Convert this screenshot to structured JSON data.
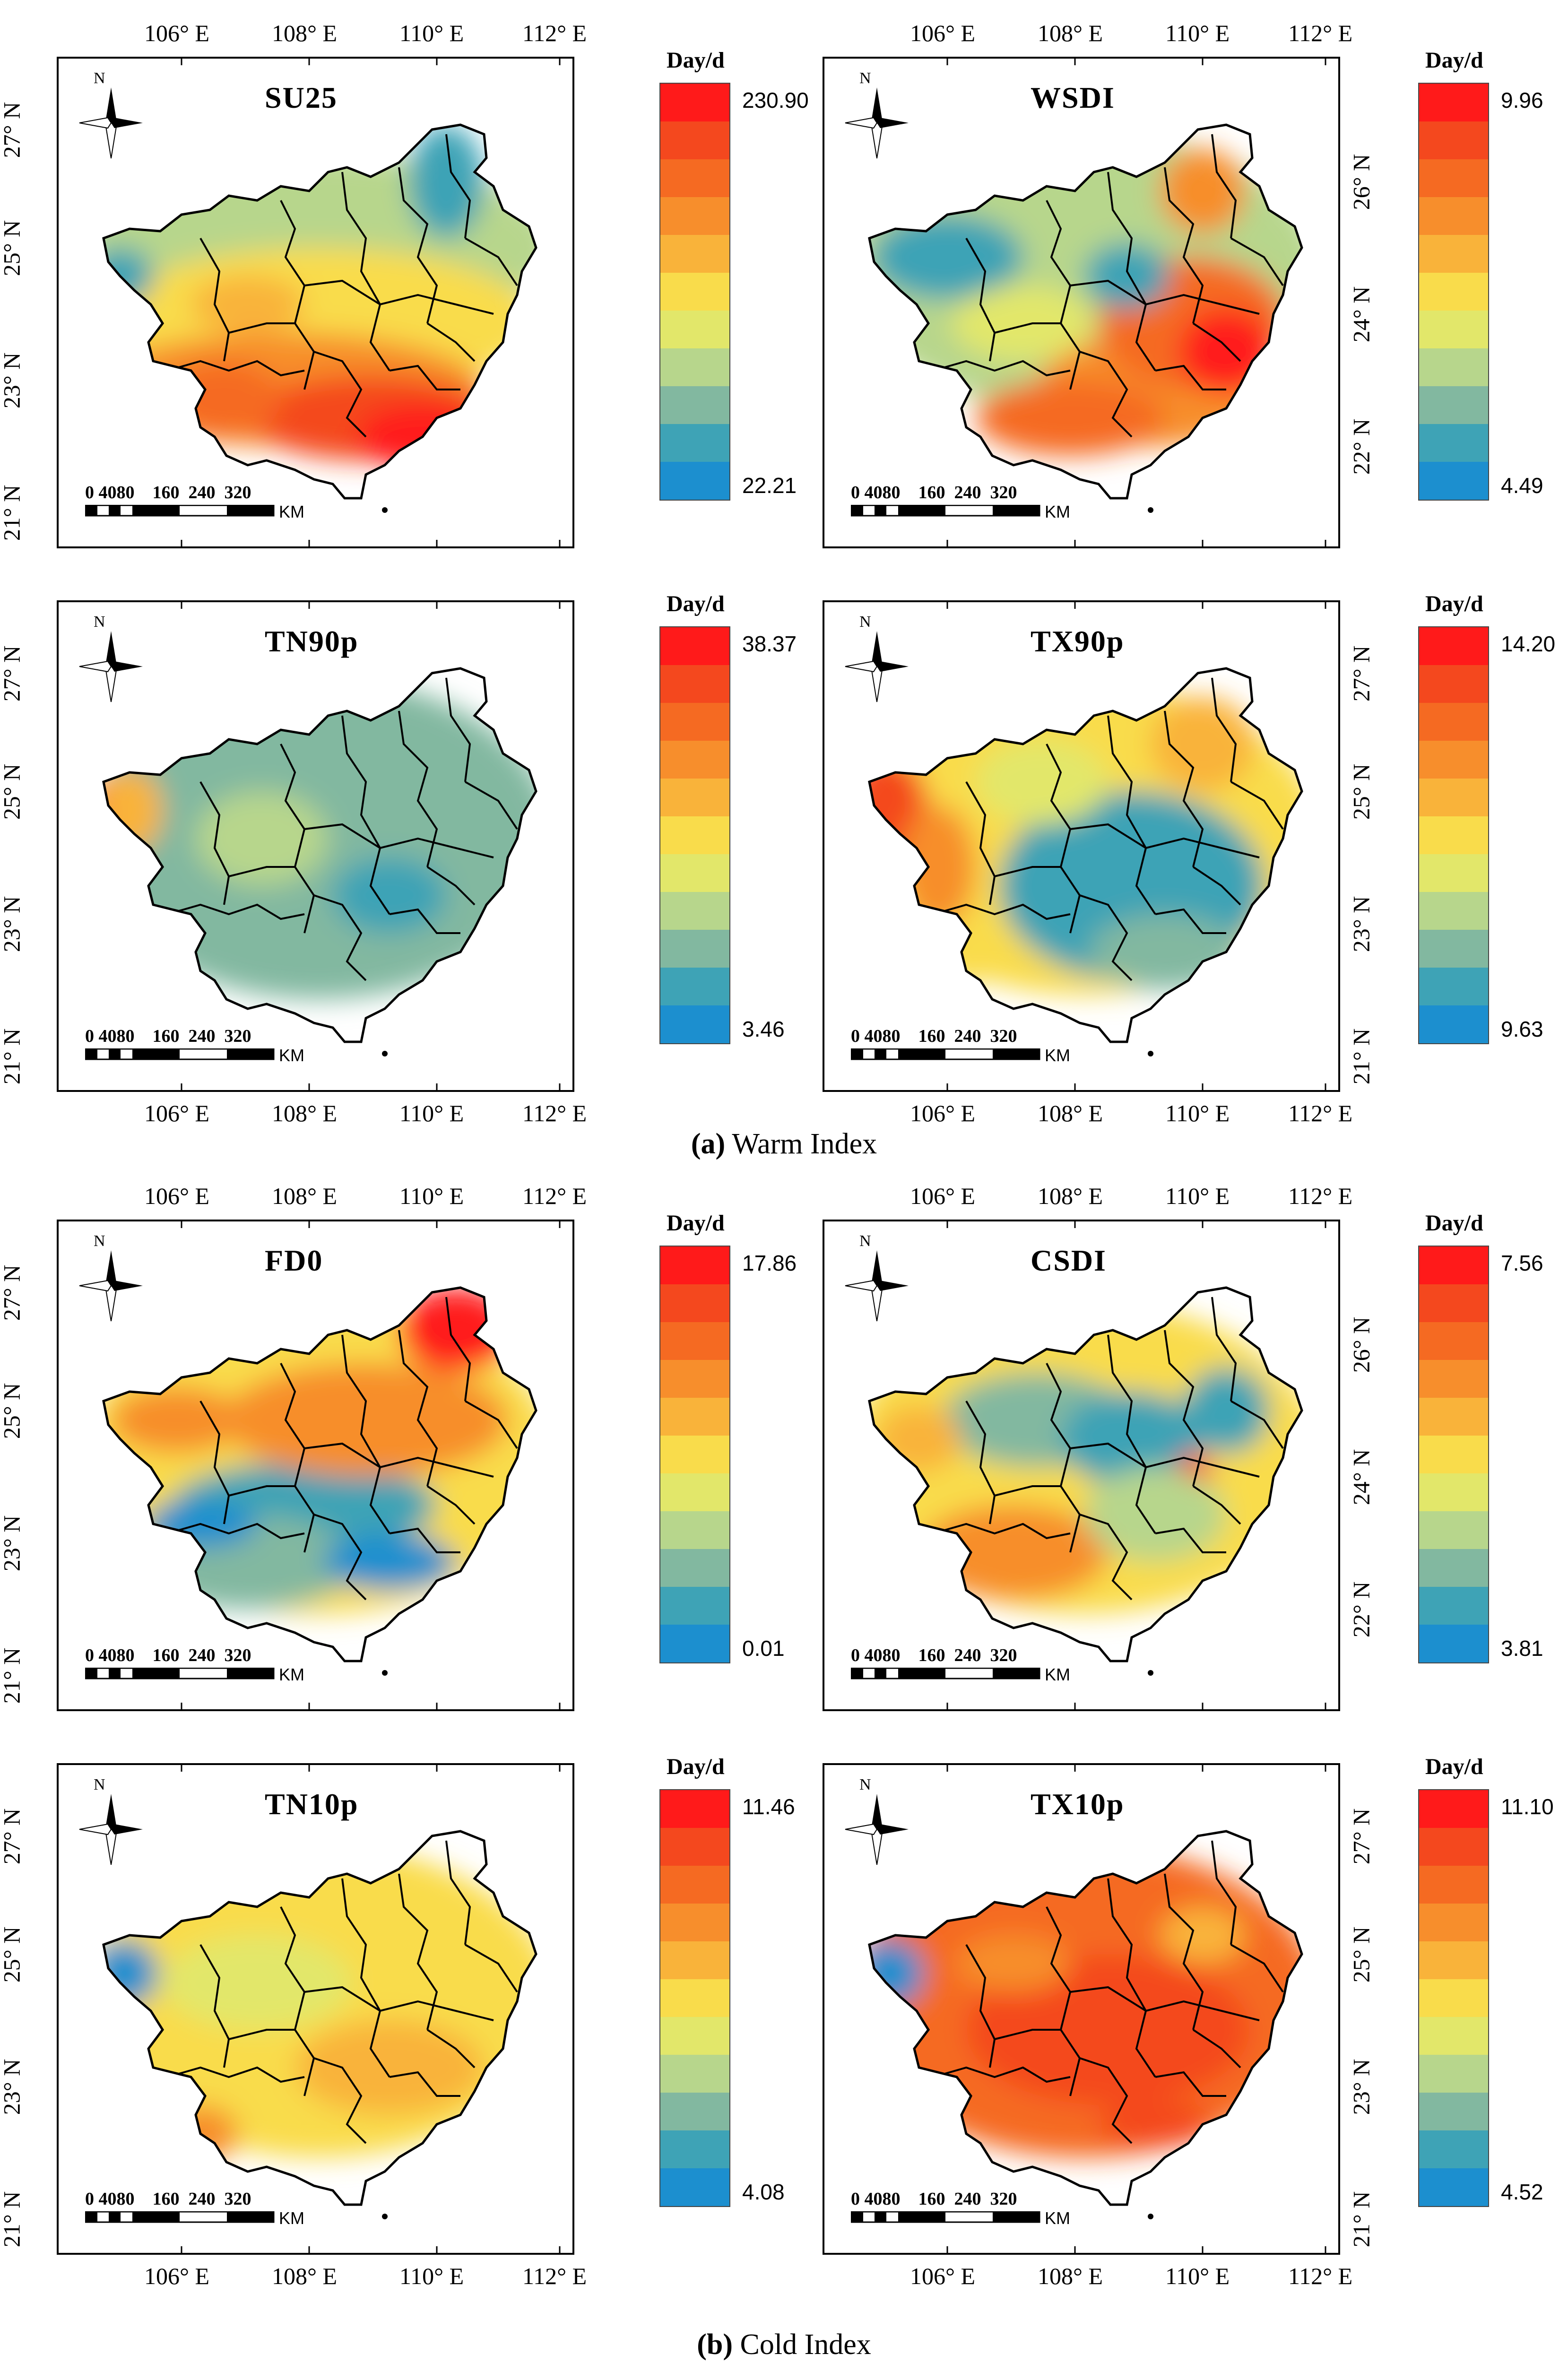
{
  "colors": {
    "ramp": [
      "#ff1a1a",
      "#f4481e",
      "#f56a22",
      "#f78e2c",
      "#f9b33a",
      "#f9dc4b",
      "#e2e76a",
      "#b7d68c",
      "#82b8a0",
      "#3ea3b6",
      "#1c8fcf"
    ],
    "border": "#000000"
  },
  "longitude_labels": [
    "106° E",
    "108° E",
    "110° E",
    "112° E"
  ],
  "latitude_labels_odd": [
    "27° N",
    "25° N",
    "23° N",
    "21° N"
  ],
  "latitude_labels_even": [
    "26° N",
    "24° N",
    "22° N"
  ],
  "scale_bar": {
    "labels": "0 4080    160  240  320",
    "unit": "KM"
  },
  "compass": {
    "label": "N",
    "icon": "north-arrow-icon"
  },
  "legend_title": "Day/d",
  "panels": [
    {
      "id": "su25",
      "title": "SU25",
      "max": "230.90",
      "min": "22.21",
      "pattern": "south-hot"
    },
    {
      "id": "wsdi",
      "title": "WSDI",
      "max": "9.96",
      "min": "4.49",
      "pattern": "east-hot"
    },
    {
      "id": "tn90p",
      "title": "TN90p",
      "max": "38.37",
      "min": "3.46",
      "pattern": "uniform-low"
    },
    {
      "id": "tx90p",
      "title": "TX90p",
      "max": "14.20",
      "min": "9.63",
      "pattern": "west-hot"
    },
    {
      "id": "fd0",
      "title": "FD0",
      "max": "17.86",
      "min": "0.01",
      "pattern": "north-hot"
    },
    {
      "id": "csdi",
      "title": "CSDI",
      "max": "7.56",
      "min": "3.81",
      "pattern": "mixed"
    },
    {
      "id": "tn10p",
      "title": "TN10p",
      "max": "11.46",
      "min": "4.08",
      "pattern": "yellow"
    },
    {
      "id": "tx10p",
      "title": "TX10p",
      "max": "11.10",
      "min": "4.52",
      "pattern": "orange"
    }
  ],
  "captions": [
    {
      "letter": "(a)",
      "text": " Warm Index"
    },
    {
      "letter": "(b)",
      "text": " Cold Index"
    }
  ]
}
